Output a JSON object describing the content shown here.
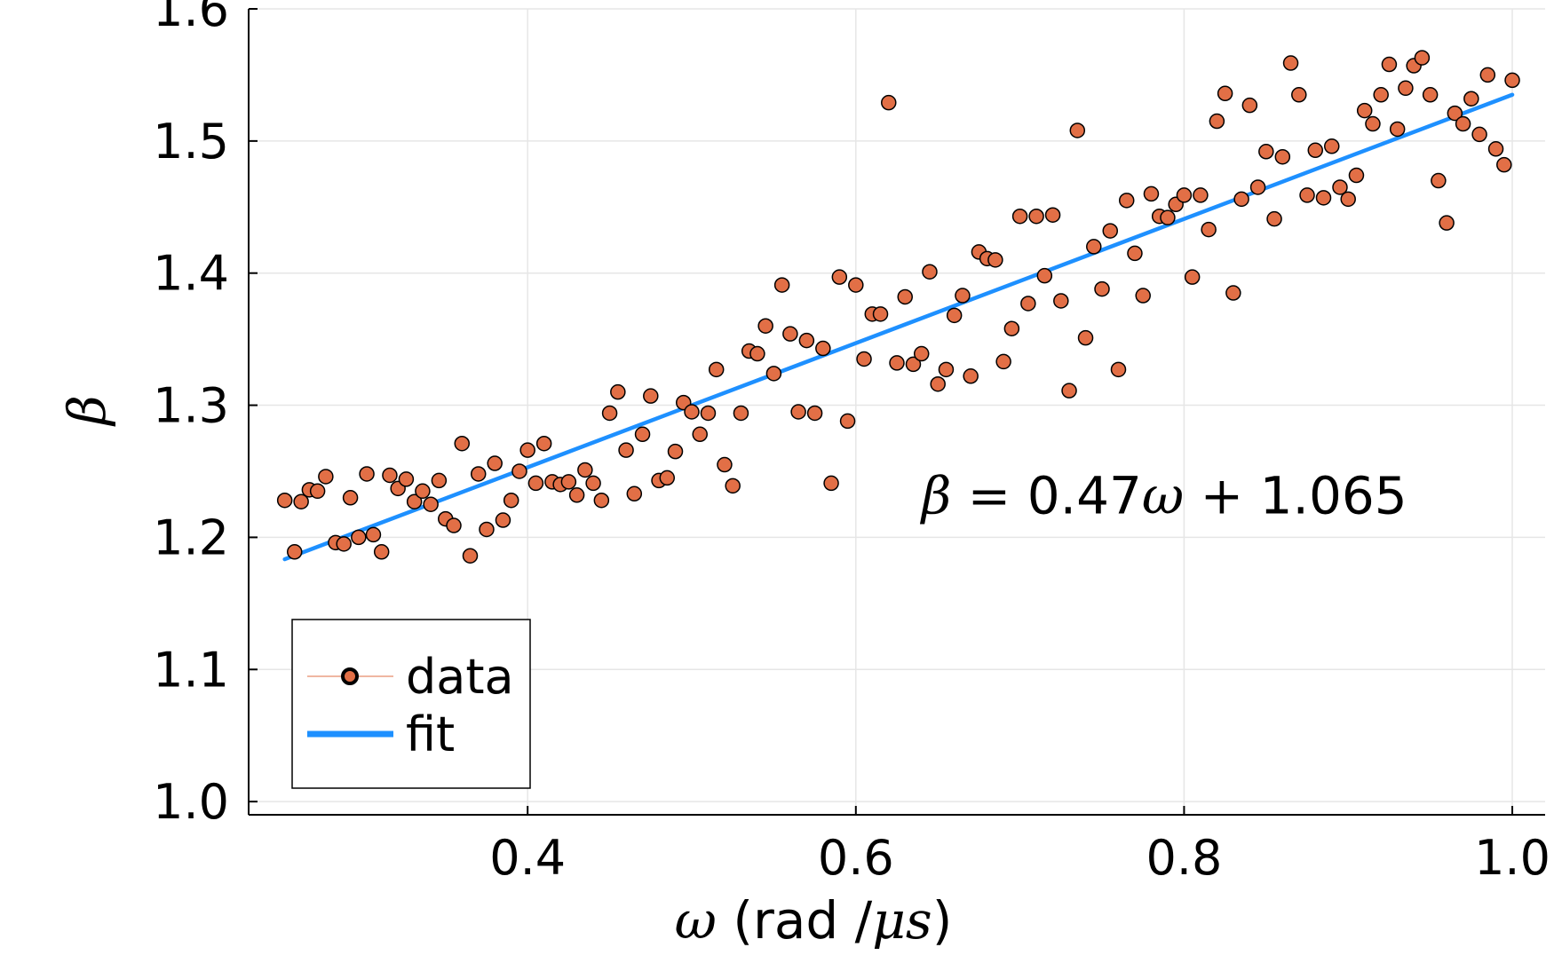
{
  "chart_data": {
    "type": "scatter",
    "xlabel": {
      "symbol": "ω",
      "text": " (rad /",
      "unit": "μs",
      "close": ")"
    },
    "ylabel": "β",
    "xlim": [
      0.23,
      1.02
    ],
    "ylim": [
      0.99,
      1.6
    ],
    "xticks": [
      0.4,
      0.6,
      0.8,
      1.0
    ],
    "xtick_labels": [
      "0.4",
      "0.6",
      "0.8",
      "1.0"
    ],
    "yticks": [
      1.0,
      1.1,
      1.2,
      1.3,
      1.4,
      1.5,
      1.6
    ],
    "ytick_labels": [
      "1.0",
      "1.1",
      "1.2",
      "1.3",
      "1.4",
      "1.5",
      "1.6"
    ],
    "grid": true,
    "legend_position": "bottom-left",
    "legend": [
      {
        "label": "data",
        "kind": "marker"
      },
      {
        "label": "fit",
        "kind": "line"
      }
    ],
    "annotation": {
      "lhs": "β",
      "eq": " = ",
      "coef": "0.47",
      "var": "ω",
      "plus": " + ",
      "const": "1.065",
      "x": 0.64,
      "y": 1.218
    },
    "colors": {
      "data": "#e26f46",
      "data_edge": "#000000",
      "fit": "#1e90ff"
    },
    "series": [
      {
        "name": "data",
        "type": "scatter",
        "points": [
          [
            0.252,
            1.228
          ],
          [
            0.258,
            1.189
          ],
          [
            0.262,
            1.227
          ],
          [
            0.267,
            1.236
          ],
          [
            0.272,
            1.235
          ],
          [
            0.277,
            1.246
          ],
          [
            0.283,
            1.196
          ],
          [
            0.288,
            1.195
          ],
          [
            0.292,
            1.23
          ],
          [
            0.297,
            1.2
          ],
          [
            0.302,
            1.248
          ],
          [
            0.306,
            1.202
          ],
          [
            0.311,
            1.189
          ],
          [
            0.316,
            1.247
          ],
          [
            0.321,
            1.237
          ],
          [
            0.326,
            1.244
          ],
          [
            0.331,
            1.227
          ],
          [
            0.336,
            1.235
          ],
          [
            0.341,
            1.225
          ],
          [
            0.346,
            1.243
          ],
          [
            0.35,
            1.214
          ],
          [
            0.355,
            1.209
          ],
          [
            0.36,
            1.271
          ],
          [
            0.365,
            1.186
          ],
          [
            0.37,
            1.248
          ],
          [
            0.375,
            1.206
          ],
          [
            0.38,
            1.256
          ],
          [
            0.385,
            1.213
          ],
          [
            0.39,
            1.228
          ],
          [
            0.395,
            1.25
          ],
          [
            0.4,
            1.266
          ],
          [
            0.405,
            1.241
          ],
          [
            0.41,
            1.271
          ],
          [
            0.415,
            1.242
          ],
          [
            0.42,
            1.24
          ],
          [
            0.425,
            1.242
          ],
          [
            0.43,
            1.232
          ],
          [
            0.435,
            1.251
          ],
          [
            0.44,
            1.241
          ],
          [
            0.445,
            1.228
          ],
          [
            0.45,
            1.294
          ],
          [
            0.455,
            1.31
          ],
          [
            0.46,
            1.266
          ],
          [
            0.465,
            1.233
          ],
          [
            0.47,
            1.278
          ],
          [
            0.475,
            1.307
          ],
          [
            0.48,
            1.243
          ],
          [
            0.485,
            1.245
          ],
          [
            0.49,
            1.265
          ],
          [
            0.495,
            1.302
          ],
          [
            0.5,
            1.295
          ],
          [
            0.505,
            1.278
          ],
          [
            0.51,
            1.294
          ],
          [
            0.515,
            1.327
          ],
          [
            0.52,
            1.255
          ],
          [
            0.525,
            1.239
          ],
          [
            0.53,
            1.294
          ],
          [
            0.535,
            1.341
          ],
          [
            0.54,
            1.339
          ],
          [
            0.545,
            1.36
          ],
          [
            0.55,
            1.324
          ],
          [
            0.555,
            1.391
          ],
          [
            0.56,
            1.354
          ],
          [
            0.565,
            1.295
          ],
          [
            0.57,
            1.349
          ],
          [
            0.575,
            1.294
          ],
          [
            0.58,
            1.343
          ],
          [
            0.585,
            1.241
          ],
          [
            0.59,
            1.397
          ],
          [
            0.595,
            1.288
          ],
          [
            0.6,
            1.391
          ],
          [
            0.605,
            1.335
          ],
          [
            0.61,
            1.369
          ],
          [
            0.615,
            1.369
          ],
          [
            0.62,
            1.529
          ],
          [
            0.625,
            1.332
          ],
          [
            0.63,
            1.382
          ],
          [
            0.635,
            1.331
          ],
          [
            0.64,
            1.339
          ],
          [
            0.645,
            1.401
          ],
          [
            0.65,
            1.316
          ],
          [
            0.655,
            1.327
          ],
          [
            0.66,
            1.368
          ],
          [
            0.665,
            1.383
          ],
          [
            0.67,
            1.322
          ],
          [
            0.675,
            1.416
          ],
          [
            0.68,
            1.411
          ],
          [
            0.685,
            1.41
          ],
          [
            0.69,
            1.333
          ],
          [
            0.695,
            1.358
          ],
          [
            0.7,
            1.443
          ],
          [
            0.705,
            1.377
          ],
          [
            0.71,
            1.443
          ],
          [
            0.715,
            1.398
          ],
          [
            0.72,
            1.444
          ],
          [
            0.725,
            1.379
          ],
          [
            0.73,
            1.311
          ],
          [
            0.735,
            1.508
          ],
          [
            0.74,
            1.351
          ],
          [
            0.745,
            1.42
          ],
          [
            0.75,
            1.388
          ],
          [
            0.755,
            1.432
          ],
          [
            0.76,
            1.327
          ],
          [
            0.765,
            1.455
          ],
          [
            0.77,
            1.415
          ],
          [
            0.775,
            1.383
          ],
          [
            0.78,
            1.46
          ],
          [
            0.785,
            1.443
          ],
          [
            0.79,
            1.442
          ],
          [
            0.795,
            1.452
          ],
          [
            0.8,
            1.459
          ],
          [
            0.805,
            1.397
          ],
          [
            0.81,
            1.459
          ],
          [
            0.815,
            1.433
          ],
          [
            0.82,
            1.515
          ],
          [
            0.825,
            1.536
          ],
          [
            0.83,
            1.385
          ],
          [
            0.835,
            1.456
          ],
          [
            0.84,
            1.527
          ],
          [
            0.845,
            1.465
          ],
          [
            0.85,
            1.492
          ],
          [
            0.855,
            1.441
          ],
          [
            0.86,
            1.488
          ],
          [
            0.865,
            1.559
          ],
          [
            0.87,
            1.535
          ],
          [
            0.875,
            1.459
          ],
          [
            0.88,
            1.493
          ],
          [
            0.885,
            1.457
          ],
          [
            0.89,
            1.496
          ],
          [
            0.895,
            1.465
          ],
          [
            0.9,
            1.456
          ],
          [
            0.905,
            1.474
          ],
          [
            0.91,
            1.523
          ],
          [
            0.915,
            1.513
          ],
          [
            0.92,
            1.535
          ],
          [
            0.925,
            1.558
          ],
          [
            0.93,
            1.509
          ],
          [
            0.935,
            1.54
          ],
          [
            0.94,
            1.557
          ],
          [
            0.945,
            1.563
          ],
          [
            0.95,
            1.535
          ],
          [
            0.955,
            1.47
          ],
          [
            0.96,
            1.438
          ],
          [
            0.965,
            1.521
          ],
          [
            0.97,
            1.513
          ],
          [
            0.975,
            1.532
          ],
          [
            0.98,
            1.505
          ],
          [
            0.985,
            1.55
          ],
          [
            0.99,
            1.494
          ],
          [
            0.995,
            1.482
          ],
          [
            1.0,
            1.546
          ]
        ]
      },
      {
        "name": "fit",
        "type": "line",
        "slope": 0.47,
        "intercept": 1.065,
        "x_range": [
          0.252,
          1.0
        ]
      }
    ]
  }
}
